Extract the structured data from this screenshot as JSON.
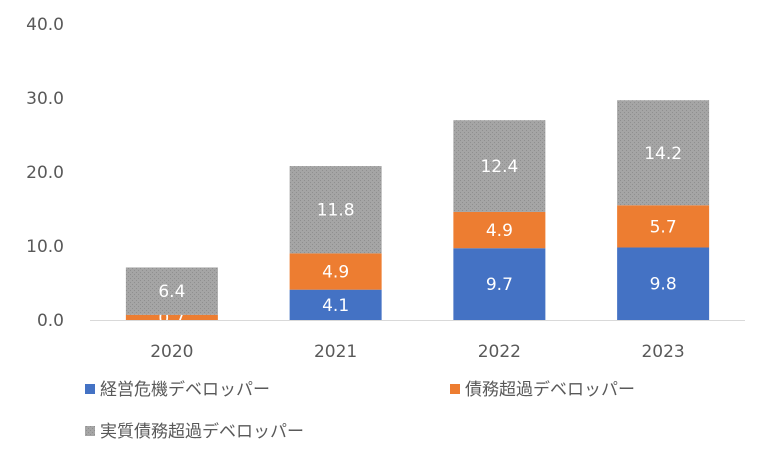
{
  "chart_data": {
    "type": "bar",
    "stacked": true,
    "categories": [
      "2020",
      "2021",
      "2022",
      "2023"
    ],
    "series": [
      {
        "name": "経営危機デベロッパー",
        "color": "#4472C4",
        "values": [
          0,
          4.1,
          9.7,
          9.8
        ],
        "labels": [
          "",
          "4.1",
          "9.7",
          "9.8"
        ]
      },
      {
        "name": "債務超過デベロッパー",
        "color": "#ED7D31",
        "values": [
          0.7,
          4.9,
          4.9,
          5.7
        ],
        "labels": [
          "0.7",
          "4.9",
          "4.9",
          "5.7"
        ]
      },
      {
        "name": "実質債務超過デベロッパー",
        "color": "#A5A5A5",
        "values": [
          6.4,
          11.8,
          12.4,
          14.2
        ],
        "labels": [
          "6.4",
          "11.8",
          "12.4",
          "14.2"
        ]
      }
    ],
    "yticks": [
      "0.0",
      "10.0",
      "20.0",
      "30.0",
      "40.0"
    ],
    "ylim": [
      0,
      40
    ],
    "legend_position": "bottom",
    "grid": false
  }
}
